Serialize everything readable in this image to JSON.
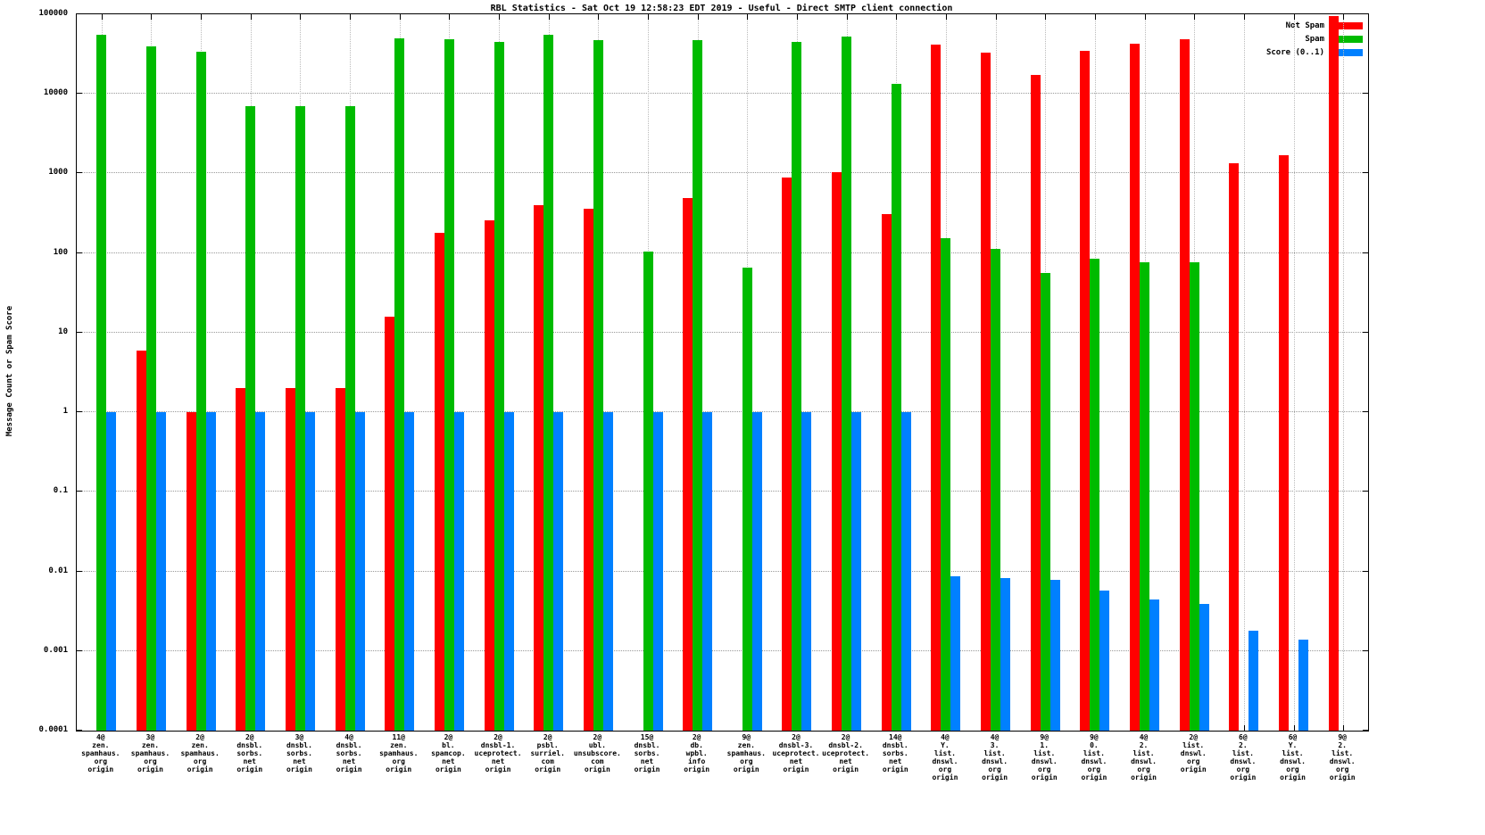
{
  "title": "RBL Statistics - Sat Oct 19 12:58:23 EDT 2019 - Useful - Direct SMTP client connection",
  "ylabel": "Message Count or Spam Score",
  "legend": [
    {
      "label": "Not Spam",
      "color": "#ff0000"
    },
    {
      "label": "Spam",
      "color": "#00bb00"
    },
    {
      "label": "Score (0..1)",
      "color": "#0080ff"
    }
  ],
  "chart_data": {
    "type": "bar",
    "title": "RBL Statistics - Sat Oct 19 12:58:23 EDT 2019 - Useful - Direct SMTP client connection",
    "ylabel": "Message Count or Spam Score",
    "yscale": "log",
    "ylim": [
      0.0001,
      100000
    ],
    "grid": true,
    "legend_position": "top-right",
    "ytick_values": [
      100000,
      10000,
      1000,
      100,
      10,
      1,
      0.1,
      0.01,
      0.001,
      0.0001
    ],
    "ytick_labels": [
      "100000",
      "10000",
      "1000",
      "100",
      "10",
      "1",
      "0.1",
      "0.01",
      "0.001",
      "0.0001"
    ],
    "categories": [
      [
        "4@",
        "zen.",
        "spamhaus.",
        "org",
        "origin"
      ],
      [
        "3@",
        "zen.",
        "spamhaus.",
        "org",
        "origin"
      ],
      [
        "2@",
        "zen.",
        "spamhaus.",
        "org",
        "origin"
      ],
      [
        "2@",
        "dnsbl.",
        "sorbs.",
        "net",
        "origin"
      ],
      [
        "3@",
        "dnsbl.",
        "sorbs.",
        "net",
        "origin"
      ],
      [
        "4@",
        "dnsbl.",
        "sorbs.",
        "net",
        "origin"
      ],
      [
        "11@",
        "zen.",
        "spamhaus.",
        "org",
        "origin"
      ],
      [
        "2@",
        "bl.",
        "spamcop.",
        "net",
        "origin"
      ],
      [
        "2@",
        "dnsbl-1.",
        "uceprotect.",
        "net",
        "origin"
      ],
      [
        "2@",
        "psbl.",
        "surriel.",
        "com",
        "origin"
      ],
      [
        "2@",
        "ubl.",
        "unsubscore.",
        "com",
        "origin"
      ],
      [
        "15@",
        "dnsbl.",
        "sorbs.",
        "net",
        "origin"
      ],
      [
        "2@",
        "db.",
        "wpbl.",
        "info",
        "origin"
      ],
      [
        "9@",
        "zen.",
        "spamhaus.",
        "org",
        "origin"
      ],
      [
        "2@",
        "dnsbl-3.",
        "uceprotect.",
        "net",
        "origin"
      ],
      [
        "2@",
        "dnsbl-2.",
        "uceprotect.",
        "net",
        "origin"
      ],
      [
        "14@",
        "dnsbl.",
        "sorbs.",
        "net",
        "origin"
      ],
      [
        "4@",
        "Y.",
        "list.",
        "dnswl.",
        "org",
        "origin"
      ],
      [
        "4@",
        "3.",
        "list.",
        "dnswl.",
        "org",
        "origin"
      ],
      [
        "9@",
        "1.",
        "list.",
        "dnswl.",
        "org",
        "origin"
      ],
      [
        "9@",
        "0.",
        "list.",
        "dnswl.",
        "org",
        "origin"
      ],
      [
        "4@",
        "2.",
        "list.",
        "dnswl.",
        "org",
        "origin"
      ],
      [
        "2@",
        "list.",
        "dnswl.",
        "org",
        "origin"
      ],
      [
        "6@",
        "2.",
        "list.",
        "dnswl.",
        "org",
        "origin"
      ],
      [
        "6@",
        "Y.",
        "list.",
        "dnswl.",
        "org",
        "origin"
      ],
      [
        "9@",
        "2.",
        "list.",
        "dnswl.",
        "org",
        "origin"
      ]
    ],
    "series": [
      {
        "name": "Not Spam",
        "color": "#ff0000",
        "values": [
          0,
          6,
          1,
          2,
          2,
          2,
          16,
          180,
          260,
          400,
          360,
          0,
          490,
          0,
          880,
          1030,
          310,
          42000,
          33000,
          17500,
          35000,
          43000,
          48000,
          1350,
          1700,
          95000
        ]
      },
      {
        "name": "Spam",
        "color": "#00bb00",
        "values": [
          55000,
          40000,
          34000,
          7000,
          7000,
          7000,
          50000,
          49000,
          45000,
          55000,
          47000,
          105,
          47000,
          65,
          45000,
          52000,
          13500,
          155,
          113,
          56,
          84,
          77,
          77,
          0,
          0,
          0
        ]
      },
      {
        "name": "Score (0..1)",
        "color": "#0080ff",
        "values": [
          1,
          1,
          1,
          1,
          1,
          1,
          1,
          1,
          1,
          1,
          1,
          1,
          1,
          1,
          1,
          1,
          1,
          0.0088,
          0.0082,
          0.0079,
          0.0058,
          0.0044,
          0.0039,
          0.0018,
          0.0014,
          0
        ]
      }
    ]
  }
}
